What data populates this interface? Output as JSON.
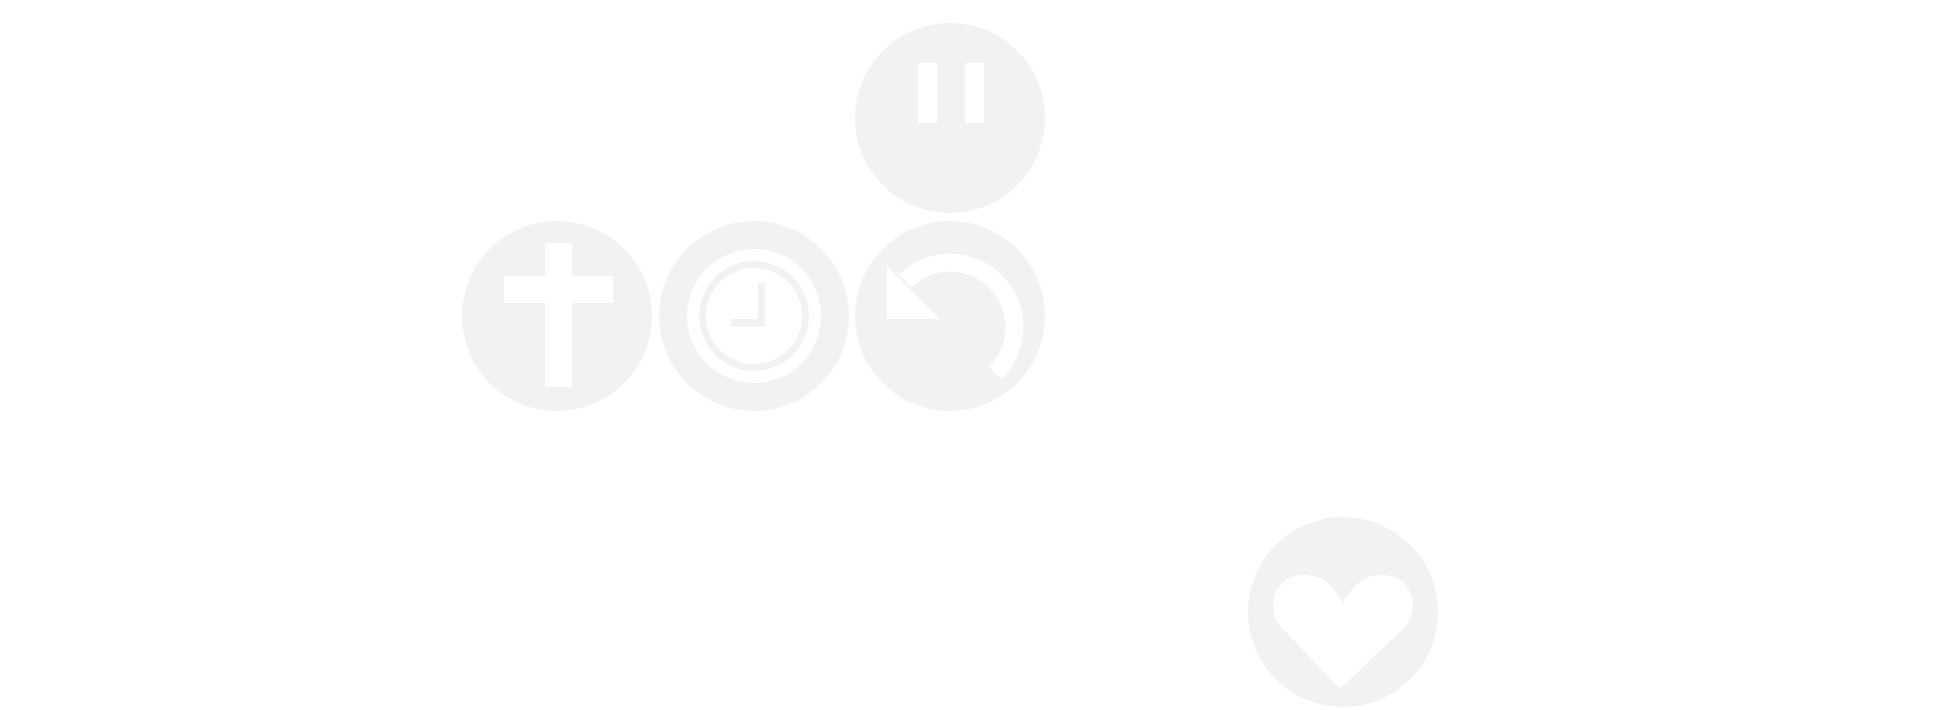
{
  "controls": {
    "pause": {
      "icon": "pause-icon"
    },
    "add": {
      "icon": "plus-icon"
    },
    "clock": {
      "icon": "clock-icon"
    },
    "undo": {
      "icon": "undo-icon"
    },
    "heart": {
      "icon": "heart-icon"
    }
  },
  "colors": {
    "background": "#ffffff",
    "button_fill": "#f2f2f2",
    "icon": "#ffffff"
  }
}
